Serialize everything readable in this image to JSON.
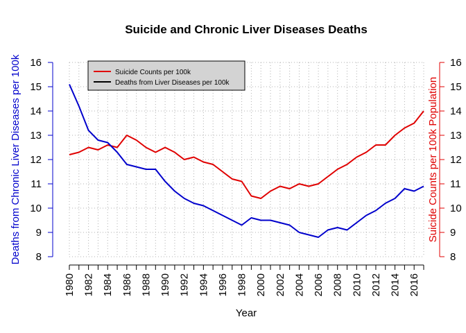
{
  "chart_data": {
    "type": "line",
    "title": "Suicide and Chronic Liver Diseases Deaths",
    "xlabel": "Year",
    "ylabel_left": "Deaths from Chronic Liver Diseases per 100k",
    "ylabel_right": "Suicide Counts per 100k Population",
    "xlim": [
      1980,
      2017
    ],
    "ylim": [
      8,
      16
    ],
    "y_ticks": [
      8,
      9,
      10,
      11,
      12,
      13,
      14,
      15,
      16
    ],
    "x_tick_labels": [
      "1980",
      "1982",
      "1984",
      "1986",
      "1988",
      "1990",
      "1992",
      "1994",
      "1996",
      "1998",
      "2000",
      "2002",
      "2004",
      "2006",
      "2008",
      "2010",
      "2012",
      "2014",
      "2016"
    ],
    "grid": true,
    "legend_position": "top-left",
    "x": [
      1980,
      1981,
      1982,
      1983,
      1984,
      1985,
      1986,
      1987,
      1988,
      1989,
      1990,
      1991,
      1992,
      1993,
      1994,
      1995,
      1996,
      1997,
      1998,
      1999,
      2000,
      2001,
      2002,
      2003,
      2004,
      2005,
      2006,
      2007,
      2008,
      2009,
      2010,
      2011,
      2012,
      2013,
      2014,
      2015,
      2016,
      2017
    ],
    "series": [
      {
        "name": "Suicide Counts per 100k",
        "color": "#e00000",
        "axis": "right",
        "values": [
          12.2,
          12.3,
          12.5,
          12.4,
          12.6,
          12.5,
          13.0,
          12.8,
          12.5,
          12.3,
          12.5,
          12.3,
          12.0,
          12.1,
          11.9,
          11.8,
          11.5,
          11.2,
          11.1,
          10.5,
          10.4,
          10.7,
          10.9,
          10.8,
          11.0,
          10.9,
          11.0,
          11.3,
          11.6,
          11.8,
          12.1,
          12.3,
          12.6,
          12.6,
          13.0,
          13.3,
          13.5,
          14.0
        ]
      },
      {
        "name": "Deaths from Liver Diseases per 100k",
        "color": "#0000cc",
        "axis": "left",
        "values": [
          15.1,
          14.2,
          13.2,
          12.8,
          12.7,
          12.3,
          11.8,
          11.7,
          11.6,
          11.6,
          11.1,
          10.7,
          10.4,
          10.2,
          10.1,
          9.9,
          9.7,
          9.5,
          9.3,
          9.6,
          9.5,
          9.5,
          9.4,
          9.3,
          9.0,
          8.9,
          8.8,
          9.1,
          9.2,
          9.1,
          9.4,
          9.7,
          9.9,
          10.2,
          10.4,
          10.8,
          10.7,
          10.9
        ]
      }
    ],
    "colors": {
      "left_axis": "#0000cc",
      "right_axis": "#e00000",
      "grid": "#b0b0b0",
      "legend_bg": "#d3d3d3"
    }
  }
}
